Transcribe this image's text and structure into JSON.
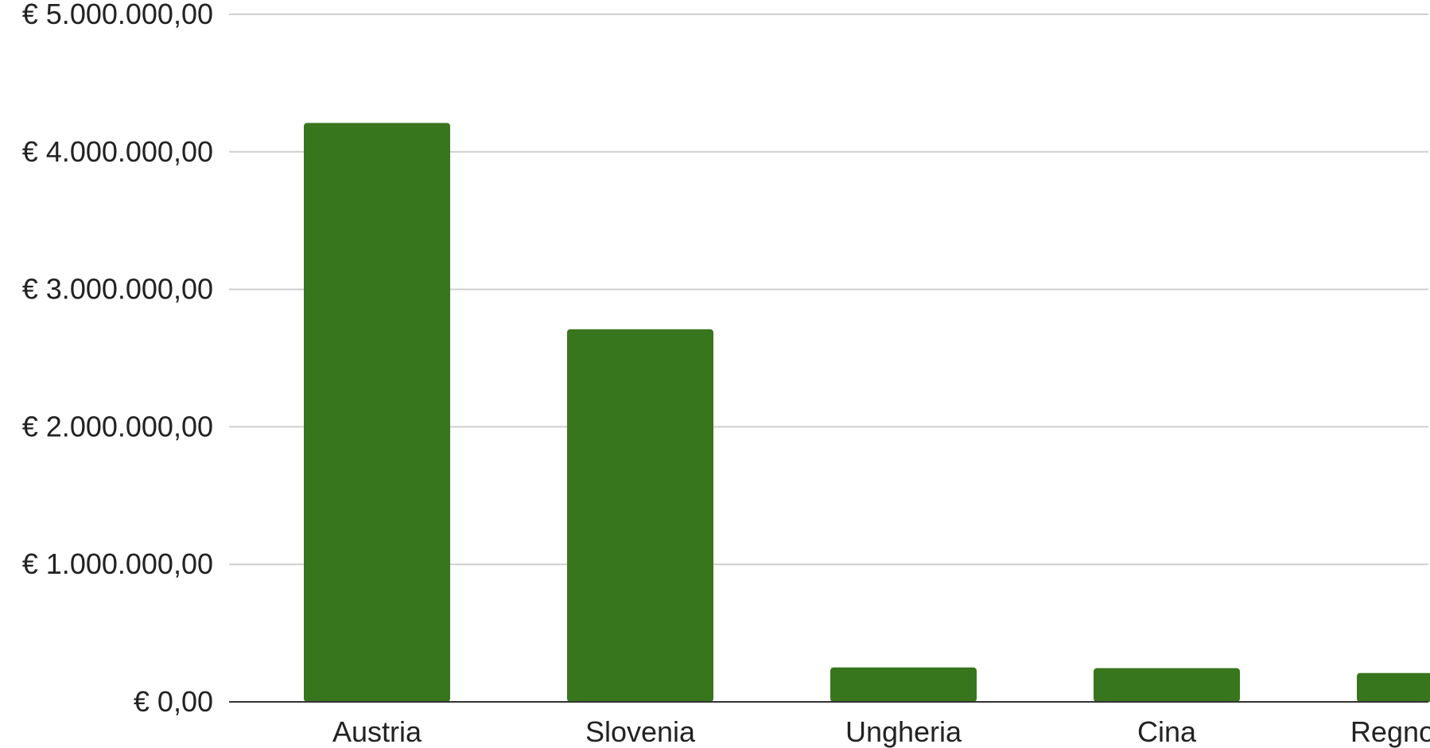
{
  "chart_data": {
    "type": "bar",
    "title": "",
    "xlabel": "",
    "ylabel": "",
    "categories": [
      "Austria",
      "Slovenia",
      "Ungheria",
      "Cina",
      "Regno Unito"
    ],
    "values": [
      4210000,
      2710000,
      250000,
      245000,
      210000
    ],
    "ylim": [
      0,
      5000000
    ],
    "yticks": [
      0,
      1000000,
      2000000,
      3000000,
      4000000,
      5000000
    ],
    "ytick_labels": [
      "€ 0,00",
      "€ 1.000.000,00",
      "€ 2.000.000,00",
      "€ 3.000.000,00",
      "€ 4.000.000,00",
      "€ 5.000.000,00"
    ],
    "grid": true,
    "legend": "none",
    "colors": {
      "bar": "#38761d",
      "grid": "#cfcfcf",
      "axis": "#333333",
      "text": "#222222"
    }
  }
}
